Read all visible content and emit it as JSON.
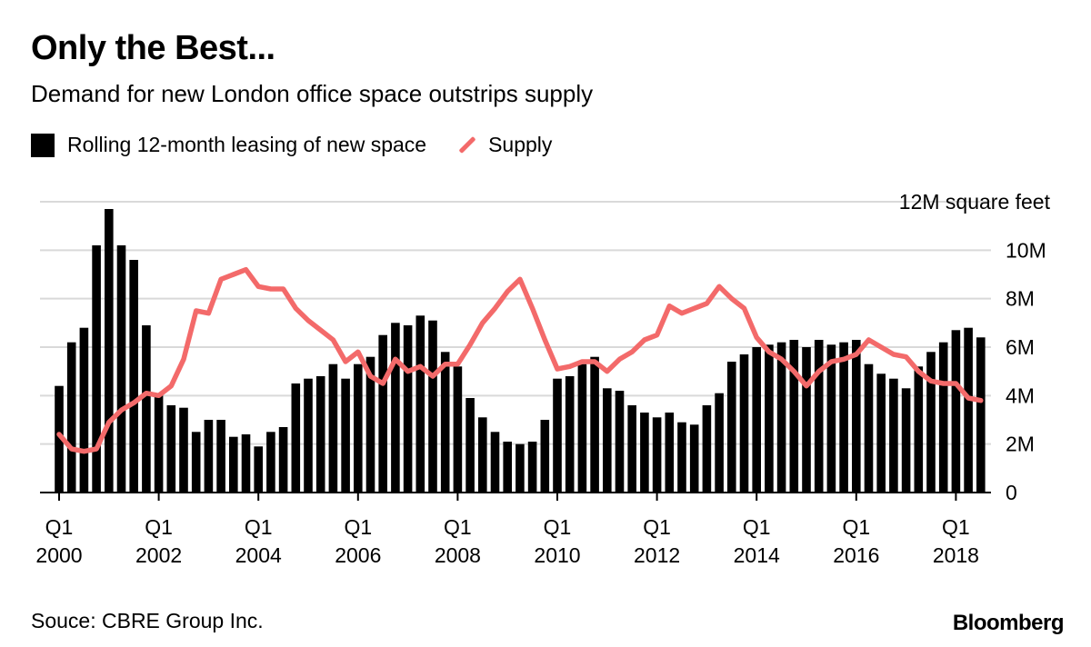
{
  "header": {
    "title": "Only the Best...",
    "subtitle": "Demand for new London office space outstrips supply"
  },
  "legend": {
    "bars_label": "Rolling 12-month leasing of new space",
    "line_label": "Supply"
  },
  "footer": {
    "source": "Souce: CBRE Group Inc.",
    "brand": "Bloomberg"
  },
  "colors": {
    "bars": "#000000",
    "supply": "#f36a6a",
    "grid": "#d9d9d9"
  },
  "chart_data": {
    "type": "bar",
    "title": "Only the Best...",
    "subtitle": "Demand for new London office space outstrips supply",
    "ylabel": "12M square feet",
    "ylim": [
      0,
      12
    ],
    "y_ticks": [
      0,
      2,
      4,
      6,
      8,
      10,
      12
    ],
    "y_tick_labels": [
      "0",
      "2M",
      "4M",
      "6M",
      "8M",
      "10M",
      "12M square feet"
    ],
    "x_start_quarter": "Q1 2000",
    "x_ticks": [
      {
        "q": 0,
        "top": "Q1",
        "bottom": "2000"
      },
      {
        "q": 8,
        "top": "Q1",
        "bottom": "2002"
      },
      {
        "q": 16,
        "top": "Q1",
        "bottom": "2004"
      },
      {
        "q": 24,
        "top": "Q1",
        "bottom": "2006"
      },
      {
        "q": 32,
        "top": "Q1",
        "bottom": "2008"
      },
      {
        "q": 40,
        "top": "Q1",
        "bottom": "2010"
      },
      {
        "q": 48,
        "top": "Q1",
        "bottom": "2012"
      },
      {
        "q": 56,
        "top": "Q1",
        "bottom": "2014"
      },
      {
        "q": 64,
        "top": "Q1",
        "bottom": "2016"
      },
      {
        "q": 72,
        "top": "Q1",
        "bottom": "2018"
      }
    ],
    "series": [
      {
        "name": "Rolling 12-month leasing of new space",
        "type": "bar",
        "values": [
          4.4,
          6.2,
          6.8,
          10.2,
          11.7,
          10.2,
          9.6,
          6.9,
          4.0,
          3.6,
          3.5,
          2.5,
          3.0,
          3.0,
          2.3,
          2.4,
          1.9,
          2.5,
          2.7,
          4.5,
          4.7,
          4.8,
          5.3,
          4.7,
          5.3,
          5.6,
          6.5,
          7.0,
          6.9,
          7.3,
          7.1,
          5.8,
          5.2,
          3.9,
          3.1,
          2.5,
          2.1,
          2.0,
          2.1,
          3.0,
          4.7,
          4.8,
          5.3,
          5.6,
          4.3,
          4.2,
          3.6,
          3.3,
          3.1,
          3.3,
          2.9,
          2.8,
          3.6,
          4.1,
          5.4,
          5.7,
          6.0,
          6.1,
          6.2,
          6.3,
          6.0,
          6.3,
          6.1,
          6.2,
          6.3,
          5.3,
          4.9,
          4.7,
          4.3,
          5.2,
          5.8,
          6.2,
          6.7,
          6.8,
          6.4
        ]
      },
      {
        "name": "Supply",
        "type": "line",
        "values": [
          2.4,
          1.8,
          1.7,
          1.8,
          2.9,
          3.4,
          3.7,
          4.1,
          4.0,
          4.4,
          5.5,
          7.5,
          7.4,
          8.8,
          9.0,
          9.2,
          8.5,
          8.4,
          8.4,
          7.6,
          7.1,
          6.7,
          6.3,
          5.4,
          5.8,
          4.8,
          4.5,
          5.5,
          5.0,
          5.2,
          4.8,
          5.3,
          5.3,
          6.1,
          7.0,
          7.6,
          8.3,
          8.8,
          7.6,
          6.3,
          5.1,
          5.2,
          5.4,
          5.4,
          5.0,
          5.5,
          5.8,
          6.3,
          6.5,
          7.7,
          7.4,
          7.6,
          7.8,
          8.5,
          8.0,
          7.6,
          6.4,
          5.8,
          5.5,
          5.0,
          4.4,
          5.0,
          5.4,
          5.5,
          5.7,
          6.3,
          6.0,
          5.7,
          5.6,
          5.0,
          4.6,
          4.5,
          4.5,
          3.9,
          3.8
        ]
      }
    ]
  }
}
